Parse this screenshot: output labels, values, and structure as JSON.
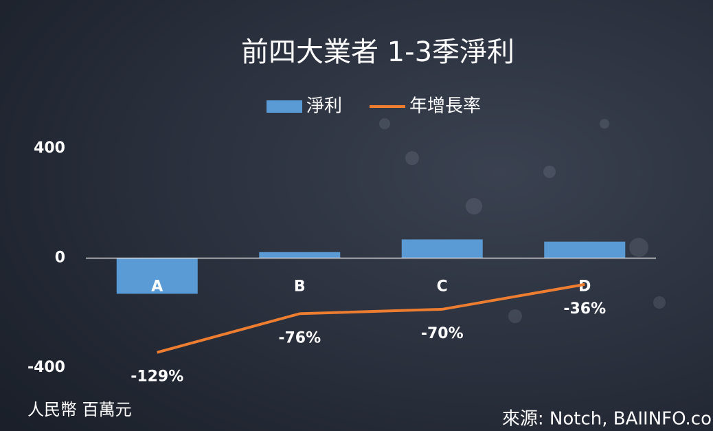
{
  "chart_data": {
    "type": "bar-line",
    "title": "前四大業者 1-3季淨利",
    "categories": [
      "A",
      "B",
      "C",
      "D"
    ],
    "series": [
      {
        "name": "淨利",
        "type": "bar",
        "color": "#5b9bd5",
        "values": [
          -130,
          22,
          68,
          60
        ]
      },
      {
        "name": "年增長率",
        "type": "line",
        "axis": "y2",
        "color": "#ed7d31",
        "values": [
          -129,
          -76,
          -70,
          -36
        ],
        "value_labels": [
          "-129%",
          "-76%",
          "-70%",
          "-36%"
        ]
      }
    ],
    "ylim": [
      -400,
      400
    ],
    "yticks": [
      -400,
      0,
      400
    ],
    "y2lim": [
      -150,
      150
    ],
    "y_axis_label": "人民幣 百萬元",
    "source": "來源: Notch, BAIINFO.co",
    "legend": "top"
  }
}
